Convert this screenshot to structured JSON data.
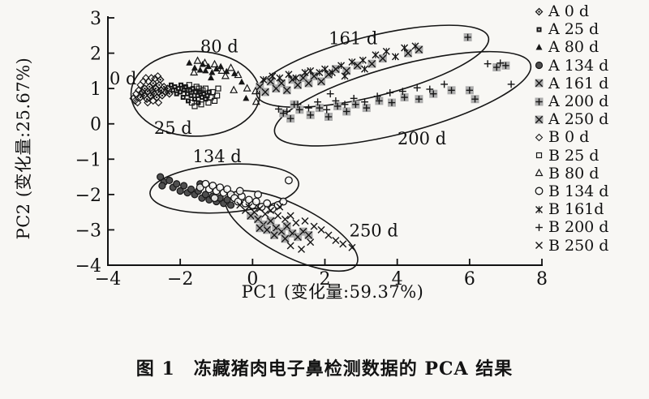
{
  "figure": {
    "caption": "图 1　冻藏猪肉电子鼻检测数据的 PCA 结果"
  },
  "colors": {
    "ink": "#161616",
    "axis": "#111111",
    "marker_gray_fill": "#acacac",
    "filled_circle_fill": "#4f4f4f",
    "background": "#f8f7f4"
  },
  "chart_data": {
    "type": "scatter",
    "title": "",
    "xlabel": "PC1 (变化量:59.37%)",
    "ylabel": "PC2 (变化量:25.67%)",
    "xlim": [
      -4,
      8
    ],
    "ylim": [
      -4,
      3
    ],
    "xticks": [
      -4,
      -2,
      0,
      2,
      4,
      6,
      8
    ],
    "yticks": [
      3,
      2,
      1,
      0,
      -1,
      -2,
      -3,
      -4
    ],
    "grid": false,
    "legend_position": "right",
    "cluster_labels": [
      {
        "text": "0 d",
        "x": -3.58,
        "y": 1.28
      },
      {
        "text": "25 d",
        "x": -2.2,
        "y": -0.12
      },
      {
        "text": "80 d",
        "x": -0.92,
        "y": 2.18
      },
      {
        "text": "134 d",
        "x": -0.98,
        "y": -0.92
      },
      {
        "text": "161 d",
        "x": 2.78,
        "y": 2.42
      },
      {
        "text": "200 d",
        "x": 4.68,
        "y": -0.42
      },
      {
        "text": "250 d",
        "x": 3.35,
        "y": -3.02
      }
    ],
    "ellipses": [
      {
        "name": "0-25-80 d",
        "cx": -1.58,
        "cy": 0.85,
        "rx": 1.78,
        "ry": 1.2,
        "rot_deg": 0
      },
      {
        "name": "161 d",
        "cx": 3.32,
        "cy": 1.63,
        "rx": 3.3,
        "ry": 0.85,
        "rot_deg": -14
      },
      {
        "name": "200 d",
        "cx": 4.15,
        "cy": 0.71,
        "rx": 3.66,
        "ry": 0.95,
        "rot_deg": -15
      },
      {
        "name": "134 d",
        "cx": -0.78,
        "cy": -1.83,
        "rx": 2.06,
        "ry": 0.68,
        "rot_deg": -4
      },
      {
        "name": "250 d",
        "cx": 1.08,
        "cy": -3.03,
        "rx": 2.02,
        "ry": 0.72,
        "rot_deg": 27
      }
    ],
    "series": [
      {
        "name": "A 0 d",
        "marker": "diamond-dot",
        "points": [
          [
            -3.1,
            0.75
          ],
          [
            -3.05,
            0.9
          ],
          [
            -3.0,
            0.8
          ],
          [
            -2.98,
            1.0
          ],
          [
            -2.92,
            0.7
          ],
          [
            -2.9,
            0.92
          ],
          [
            -2.85,
            1.05
          ],
          [
            -2.82,
            0.8
          ],
          [
            -2.78,
            0.95
          ],
          [
            -2.75,
            1.15
          ],
          [
            -2.72,
            0.85
          ],
          [
            -2.68,
            1.0
          ],
          [
            -2.65,
            0.75
          ],
          [
            -2.6,
            0.9
          ],
          [
            -2.58,
            1.1
          ],
          [
            -2.52,
            0.95
          ],
          [
            -2.5,
            0.8
          ],
          [
            -2.45,
            1.05
          ],
          [
            -2.4,
            0.9
          ],
          [
            -2.35,
            1.0
          ],
          [
            -2.3,
            0.85
          ],
          [
            -2.55,
            1.25
          ]
        ]
      },
      {
        "name": "A 25 d",
        "marker": "square-filled",
        "points": [
          [
            -2.25,
            1.1
          ],
          [
            -2.2,
            0.95
          ],
          [
            -2.15,
            1.05
          ],
          [
            -2.1,
            0.85
          ],
          [
            -2.05,
            1.0
          ],
          [
            -2.0,
            0.9
          ],
          [
            -1.98,
            1.1
          ],
          [
            -1.92,
            0.75
          ],
          [
            -1.9,
            0.95
          ],
          [
            -1.85,
            1.05
          ],
          [
            -1.8,
            0.85
          ],
          [
            -1.78,
            0.65
          ],
          [
            -1.72,
            0.95
          ],
          [
            -1.7,
            0.8
          ],
          [
            -1.65,
            1.0
          ],
          [
            -1.6,
            0.7
          ],
          [
            -1.58,
            0.9
          ],
          [
            -1.52,
            0.8
          ],
          [
            -1.5,
            0.6
          ],
          [
            -1.45,
            0.9
          ],
          [
            -1.4,
            0.75
          ],
          [
            -1.35,
            0.85
          ],
          [
            -1.3,
            0.7
          ],
          [
            -1.25,
            0.8
          ],
          [
            -1.2,
            0.9
          ]
        ]
      },
      {
        "name": "A 80 d",
        "marker": "triangle-filled",
        "points": [
          [
            -1.75,
            1.72
          ],
          [
            -1.6,
            1.58
          ],
          [
            -1.45,
            1.52
          ],
          [
            -1.38,
            1.68
          ],
          [
            -1.3,
            1.5
          ],
          [
            -1.22,
            1.62
          ],
          [
            -1.12,
            1.45
          ],
          [
            -1.0,
            1.55
          ],
          [
            -0.88,
            1.62
          ],
          [
            -0.72,
            1.48
          ],
          [
            -0.5,
            1.42
          ],
          [
            -0.3,
            1.18
          ],
          [
            -0.18,
            0.72
          ],
          [
            -1.15,
            1.3
          ]
        ]
      },
      {
        "name": "A 134 d",
        "marker": "circle-filled",
        "points": [
          [
            -2.55,
            -1.5
          ],
          [
            -2.45,
            -1.65
          ],
          [
            -2.5,
            -1.75
          ],
          [
            -2.3,
            -1.6
          ],
          [
            -2.2,
            -1.8
          ],
          [
            -2.1,
            -1.7
          ],
          [
            -2.0,
            -1.9
          ],
          [
            -1.9,
            -1.75
          ],
          [
            -1.8,
            -1.95
          ],
          [
            -1.7,
            -1.85
          ],
          [
            -1.6,
            -2.0
          ],
          [
            -1.5,
            -1.9
          ],
          [
            -1.4,
            -2.1
          ],
          [
            -1.3,
            -2.0
          ],
          [
            -1.2,
            -2.15
          ],
          [
            -1.1,
            -2.05
          ],
          [
            -1.0,
            -2.2
          ],
          [
            -0.9,
            -2.1
          ],
          [
            -0.8,
            -2.25
          ],
          [
            -0.7,
            -2.15
          ],
          [
            -0.6,
            -2.3
          ],
          [
            -1.45,
            -1.7
          ]
        ]
      },
      {
        "name": "A 161 d",
        "marker": "square-cross",
        "points": [
          [
            0.2,
            1.05
          ],
          [
            0.35,
            0.9
          ],
          [
            0.5,
            1.2
          ],
          [
            0.65,
            1.0
          ],
          [
            0.8,
            1.15
          ],
          [
            0.95,
            0.95
          ],
          [
            1.1,
            1.25
          ],
          [
            1.25,
            1.1
          ],
          [
            1.4,
            1.3
          ],
          [
            1.55,
            1.15
          ],
          [
            1.7,
            1.35
          ],
          [
            1.9,
            1.2
          ],
          [
            2.1,
            1.4
          ],
          [
            2.3,
            1.55
          ],
          [
            2.6,
            1.5
          ],
          [
            2.9,
            1.65
          ],
          [
            3.3,
            1.7
          ],
          [
            3.6,
            1.85
          ],
          [
            4.3,
            2.0
          ],
          [
            4.6,
            2.1
          ]
        ]
      },
      {
        "name": "A 200 d",
        "marker": "square-plus",
        "points": [
          [
            0.85,
            0.3
          ],
          [
            1.05,
            0.15
          ],
          [
            1.3,
            0.4
          ],
          [
            1.6,
            0.25
          ],
          [
            1.85,
            0.45
          ],
          [
            2.1,
            0.2
          ],
          [
            2.35,
            0.5
          ],
          [
            2.6,
            0.35
          ],
          [
            2.85,
            0.55
          ],
          [
            3.15,
            0.45
          ],
          [
            3.5,
            0.65
          ],
          [
            3.85,
            0.6
          ],
          [
            4.2,
            0.75
          ],
          [
            4.6,
            0.7
          ],
          [
            5.0,
            0.85
          ],
          [
            5.5,
            0.95
          ],
          [
            6.0,
            0.95
          ],
          [
            6.15,
            0.7
          ],
          [
            6.75,
            1.6
          ],
          [
            7.0,
            1.65
          ],
          [
            5.95,
            2.45
          ],
          [
            1.15,
            0.55
          ]
        ]
      },
      {
        "name": "A 250 d",
        "marker": "square-cross",
        "points": [
          [
            -0.05,
            -2.6
          ],
          [
            0.15,
            -2.7
          ],
          [
            0.3,
            -2.85
          ],
          [
            0.5,
            -2.75
          ],
          [
            0.65,
            -2.95
          ],
          [
            0.8,
            -3.05
          ],
          [
            0.95,
            -2.9
          ],
          [
            1.1,
            -3.1
          ],
          [
            1.25,
            -3.2
          ],
          [
            1.4,
            -3.05
          ],
          [
            0.4,
            -3.0
          ],
          [
            0.6,
            -3.15
          ],
          [
            0.2,
            -2.95
          ],
          [
            0.9,
            -3.25
          ],
          [
            1.55,
            -3.15
          ]
        ]
      },
      {
        "name": "B 0 d",
        "marker": "diamond-open",
        "points": [
          [
            -3.3,
            0.72
          ],
          [
            -3.22,
            0.85
          ],
          [
            -3.18,
            0.6
          ],
          [
            -3.1,
            1.1
          ],
          [
            -3.02,
            1.2
          ],
          [
            -2.95,
            1.3
          ],
          [
            -2.88,
            1.2
          ],
          [
            -2.8,
            1.3
          ],
          [
            -2.7,
            1.28
          ],
          [
            -2.62,
            1.35
          ],
          [
            -3.15,
            0.95
          ],
          [
            -3.25,
            0.65
          ],
          [
            -2.9,
            0.6
          ],
          [
            -2.75,
            0.65
          ],
          [
            -2.6,
            0.6
          ]
        ]
      },
      {
        "name": "B 25 d",
        "marker": "square-open",
        "points": [
          [
            -1.88,
            1.0
          ],
          [
            -1.75,
            1.1
          ],
          [
            -1.68,
            0.6
          ],
          [
            -1.55,
            1.05
          ],
          [
            -1.48,
            1.0
          ],
          [
            -1.38,
            0.95
          ],
          [
            -1.3,
            1.0
          ],
          [
            -1.22,
            0.6
          ],
          [
            -1.15,
            0.75
          ],
          [
            -1.1,
            0.9
          ],
          [
            -1.05,
            0.65
          ],
          [
            -0.98,
            0.8
          ],
          [
            -0.95,
            1.0
          ],
          [
            -1.6,
            0.5
          ],
          [
            -1.42,
            0.55
          ]
        ]
      },
      {
        "name": "B 80 d",
        "marker": "triangle-open",
        "points": [
          [
            -1.52,
            1.78
          ],
          [
            -1.32,
            1.72
          ],
          [
            -1.05,
            1.68
          ],
          [
            -0.85,
            1.5
          ],
          [
            -0.75,
            1.35
          ],
          [
            -0.6,
            1.58
          ],
          [
            -0.4,
            1.38
          ],
          [
            -0.15,
            1.0
          ],
          [
            0.08,
            0.92
          ],
          [
            -0.52,
            0.95
          ],
          [
            -1.62,
            1.45
          ],
          [
            0.1,
            0.62
          ]
        ]
      },
      {
        "name": "B 134 d",
        "marker": "circle-open",
        "points": [
          [
            -1.45,
            -1.8
          ],
          [
            -1.3,
            -1.7
          ],
          [
            -1.2,
            -1.85
          ],
          [
            -1.1,
            -1.75
          ],
          [
            -1.0,
            -1.9
          ],
          [
            -0.9,
            -1.8
          ],
          [
            -0.8,
            -1.95
          ],
          [
            -0.7,
            -1.85
          ],
          [
            -0.6,
            -2.0
          ],
          [
            -0.5,
            -2.1
          ],
          [
            -0.4,
            -2.2
          ],
          [
            -0.3,
            -2.05
          ],
          [
            -0.2,
            -2.25
          ],
          [
            -0.1,
            -2.15
          ],
          [
            0.0,
            -2.3
          ],
          [
            0.1,
            -2.2
          ],
          [
            0.25,
            -2.35
          ],
          [
            0.4,
            -2.25
          ],
          [
            0.55,
            -2.4
          ],
          [
            0.7,
            -2.3
          ],
          [
            0.85,
            -2.2
          ],
          [
            1.0,
            -1.6
          ],
          [
            -0.35,
            -1.9
          ],
          [
            0.15,
            -2.0
          ],
          [
            -1.05,
            -2.1
          ]
        ]
      },
      {
        "name": "B 161d",
        "marker": "asterisk-x",
        "points": [
          [
            0.3,
            1.25
          ],
          [
            0.55,
            1.35
          ],
          [
            0.75,
            1.3
          ],
          [
            1.0,
            1.4
          ],
          [
            1.2,
            1.3
          ],
          [
            1.45,
            1.45
          ],
          [
            1.6,
            1.5
          ],
          [
            1.85,
            1.45
          ],
          [
            2.0,
            1.55
          ],
          [
            2.2,
            1.45
          ],
          [
            2.45,
            1.65
          ],
          [
            2.75,
            1.75
          ],
          [
            3.05,
            1.8
          ],
          [
            3.4,
            1.95
          ],
          [
            3.7,
            2.05
          ],
          [
            3.95,
            1.9
          ],
          [
            4.2,
            2.15
          ],
          [
            4.5,
            2.2
          ],
          [
            3.1,
            1.55
          ],
          [
            2.55,
            1.35
          ]
        ]
      },
      {
        "name": "B 200 d",
        "marker": "plus",
        "points": [
          [
            0.72,
            0.42
          ],
          [
            0.95,
            0.35
          ],
          [
            1.25,
            0.55
          ],
          [
            1.55,
            0.45
          ],
          [
            1.8,
            0.62
          ],
          [
            2.05,
            0.4
          ],
          [
            2.3,
            0.65
          ],
          [
            2.55,
            0.55
          ],
          [
            2.8,
            0.72
          ],
          [
            3.1,
            0.62
          ],
          [
            3.45,
            0.78
          ],
          [
            3.8,
            0.88
          ],
          [
            4.15,
            0.92
          ],
          [
            4.55,
            1.02
          ],
          [
            4.9,
            0.98
          ],
          [
            5.3,
            1.12
          ],
          [
            6.5,
            1.7
          ],
          [
            6.85,
            1.72
          ],
          [
            7.15,
            1.12
          ],
          [
            2.15,
            0.85
          ]
        ]
      },
      {
        "name": "B 250 d",
        "marker": "cross-x",
        "points": [
          [
            -0.35,
            -2.3
          ],
          [
            -0.2,
            -2.45
          ],
          [
            -0.1,
            -2.35
          ],
          [
            0.05,
            -2.5
          ],
          [
            0.2,
            -2.4
          ],
          [
            0.35,
            -2.55
          ],
          [
            0.5,
            -2.45
          ],
          [
            0.7,
            -2.6
          ],
          [
            0.9,
            -2.7
          ],
          [
            1.05,
            -2.6
          ],
          [
            1.2,
            -2.8
          ],
          [
            1.45,
            -2.75
          ],
          [
            1.7,
            -2.9
          ],
          [
            1.9,
            -3.0
          ],
          [
            2.1,
            -3.15
          ],
          [
            2.3,
            -3.3
          ],
          [
            2.5,
            -3.4
          ],
          [
            2.75,
            -3.5
          ],
          [
            0.75,
            -2.35
          ],
          [
            1.6,
            -3.35
          ],
          [
            1.05,
            -3.45
          ],
          [
            1.35,
            -3.55
          ]
        ]
      }
    ]
  }
}
